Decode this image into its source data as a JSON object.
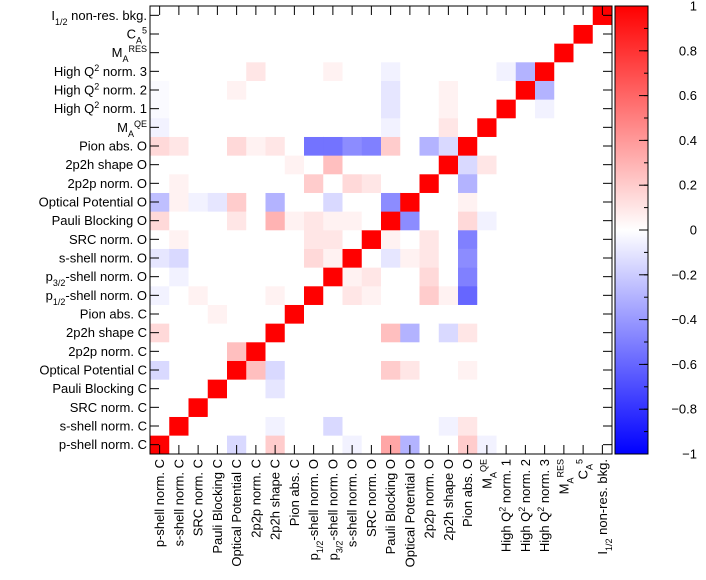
{
  "chart_data": {
    "type": "heatmap",
    "title": "",
    "labels": [
      "p-shell norm. C",
      "s-shell norm. C",
      "SRC norm. C",
      "Pauli Blocking C",
      "Optical Potential C",
      "2p2p norm. C",
      "2p2h shape C",
      "Pion abs. C",
      "p1/2-shell norm. O",
      "p3/2-shell norm. O",
      "s-shell norm. O",
      "SRC norm. O",
      "Pauli Blocking O",
      "Optical Potential O",
      "2p2p norm. O",
      "2p2h shape O",
      "Pion abs. O",
      "M_A^QE",
      "High Q2 norm. 1",
      "High Q2 norm. 2",
      "High Q2 norm. 3",
      "M_A^RES",
      "C_A^5",
      "I1/2 non-res. bkg."
    ],
    "colorbar": {
      "range": [
        -1,
        1
      ],
      "ticks": [
        "1",
        "0.8",
        "0.6",
        "0.4",
        "0.2",
        "0",
        "−0.2",
        "−0.4",
        "−0.6",
        "−0.8",
        "−1"
      ],
      "tick_values": [
        1,
        0.8,
        0.6,
        0.4,
        0.2,
        0,
        -0.2,
        -0.4,
        -0.6,
        -0.8,
        -1
      ]
    },
    "matrix": [
      [
        1,
        0,
        0,
        0,
        -0.15,
        0,
        0.15,
        0,
        -0.05,
        0,
        -0.1,
        0,
        0.15,
        -0.25,
        0,
        0,
        0.15,
        -0.05,
        -0.02,
        -0.02,
        0,
        0,
        0,
        0
      ],
      [
        0,
        1,
        0,
        0,
        0,
        0,
        0,
        0,
        0,
        -0.05,
        -0.15,
        0.05,
        0,
        0.05,
        0.05,
        0,
        0.1,
        0,
        0,
        0,
        0,
        0,
        0,
        0
      ],
      [
        0,
        0,
        1,
        0,
        0,
        0,
        0,
        0,
        0.05,
        0,
        0,
        0,
        0,
        -0.05,
        0,
        0,
        0,
        0,
        0,
        0,
        0,
        0,
        0,
        0
      ],
      [
        0,
        0,
        0,
        1,
        0,
        0,
        0,
        0.05,
        0,
        0,
        0,
        0,
        0,
        -0.1,
        0,
        0,
        0,
        0,
        0,
        0,
        0,
        0,
        0,
        0
      ],
      [
        -0.15,
        0,
        0,
        0,
        1,
        0.25,
        0,
        0,
        0,
        0,
        0,
        0,
        0.1,
        0.2,
        0,
        0,
        0.15,
        0,
        0,
        0.05,
        0,
        0,
        0,
        0
      ],
      [
        0,
        0,
        0,
        0,
        0.25,
        1,
        0,
        0,
        0,
        0,
        0,
        0,
        0,
        0,
        0,
        0,
        0.05,
        0,
        0,
        0,
        0.1,
        0,
        0,
        0
      ],
      [
        0.2,
        -0.05,
        0,
        -0.1,
        -0.15,
        0,
        1,
        0,
        0.05,
        0,
        0,
        0,
        0.3,
        -0.3,
        0,
        0,
        0.1,
        0,
        0,
        0,
        0,
        0,
        0,
        0
      ],
      [
        0,
        0,
        0,
        0,
        0,
        0,
        0,
        1,
        0,
        0,
        0,
        0,
        0.05,
        0,
        0,
        0.05,
        0,
        0,
        0,
        0,
        0,
        0,
        0,
        0
      ],
      [
        0,
        0,
        0,
        0,
        0,
        0,
        0,
        0,
        1,
        0,
        0.15,
        0.1,
        0.1,
        0,
        0.2,
        0,
        -0.55,
        0,
        0,
        0,
        0,
        0,
        0,
        0
      ],
      [
        0,
        -0.15,
        0,
        0,
        0,
        0,
        0,
        0,
        0,
        1,
        0.05,
        0.1,
        0.05,
        -0.15,
        0,
        0.25,
        -0.55,
        0,
        0,
        0,
        0.05,
        0,
        0,
        0
      ],
      [
        -0.05,
        0,
        0,
        0,
        0,
        0,
        0,
        0,
        0.1,
        0.05,
        1,
        0,
        0.05,
        0,
        0.15,
        0,
        -0.45,
        0,
        0,
        0,
        0,
        0,
        0,
        0
      ],
      [
        0,
        0,
        0,
        0,
        0,
        0,
        0,
        0,
        0.05,
        0.1,
        0,
        1,
        0,
        0,
        0.1,
        0,
        -0.5,
        0,
        0,
        0,
        0,
        0,
        0,
        0
      ],
      [
        0.35,
        0,
        0,
        0,
        0.2,
        0,
        0.25,
        0,
        0,
        0,
        -0.1,
        0.05,
        1,
        -0.45,
        0,
        0,
        0.2,
        -0.05,
        -0.1,
        -0.1,
        -0.05,
        0,
        0,
        0
      ],
      [
        -0.3,
        0,
        0,
        0,
        0.1,
        0,
        -0.3,
        0,
        0,
        0,
        0.05,
        0,
        -0.45,
        1,
        0,
        0,
        0,
        0,
        0,
        0,
        0,
        0,
        0,
        0
      ],
      [
        0,
        0,
        0,
        0,
        0,
        0,
        0,
        0,
        0.2,
        0.15,
        0.1,
        0.1,
        0,
        0,
        1,
        0,
        -0.3,
        0,
        0,
        0,
        0,
        0,
        0,
        0
      ],
      [
        0,
        -0.05,
        0,
        0,
        0,
        0,
        -0.15,
        0,
        0.05,
        0,
        0,
        0,
        0,
        0,
        0,
        1,
        -0.15,
        0.1,
        0.05,
        0.05,
        0,
        0,
        0,
        0
      ],
      [
        0.2,
        0.1,
        0,
        0,
        0.05,
        0,
        0.1,
        0,
        -0.6,
        -0.5,
        -0.45,
        -0.5,
        0.15,
        0.05,
        -0.3,
        -0.15,
        1,
        0,
        0,
        0,
        0,
        0,
        0,
        0
      ],
      [
        -0.05,
        0,
        0,
        0,
        0,
        0,
        0,
        0,
        0,
        0,
        0,
        0,
        -0.05,
        0,
        0,
        0.1,
        0,
        1,
        0,
        0,
        0,
        0,
        0,
        0
      ],
      [
        0,
        0,
        0,
        0,
        0,
        0,
        0,
        0,
        0,
        0,
        0,
        0,
        0,
        0,
        0,
        0,
        0,
        0,
        1,
        0,
        -0.05,
        0,
        0,
        0
      ],
      [
        0,
        0,
        0,
        0,
        0,
        0,
        0,
        0,
        0,
        0,
        0,
        0,
        0,
        0,
        0,
        0,
        0,
        0,
        0,
        1,
        -0.3,
        0,
        0,
        0
      ],
      [
        0,
        0,
        0,
        0,
        0,
        0,
        0,
        0,
        0,
        0,
        0,
        0,
        0,
        0,
        0,
        0,
        0,
        0,
        -0.05,
        -0.3,
        1,
        0,
        0,
        0
      ],
      [
        0,
        0,
        0,
        0,
        0,
        0,
        0,
        0,
        0,
        0,
        0,
        0,
        0,
        0,
        0,
        0,
        0,
        0,
        0,
        0,
        0,
        1,
        0,
        0
      ],
      [
        0,
        0,
        0,
        0,
        0,
        0,
        0,
        0,
        0,
        0,
        0,
        0,
        0,
        0,
        0,
        0,
        0,
        0,
        0,
        0,
        0,
        0,
        1,
        0
      ],
      [
        0,
        0,
        0,
        0,
        0,
        0,
        0,
        0,
        0,
        0,
        0,
        0,
        0,
        0,
        0,
        0,
        0,
        0,
        0,
        0,
        0,
        0,
        0,
        1
      ]
    ]
  }
}
